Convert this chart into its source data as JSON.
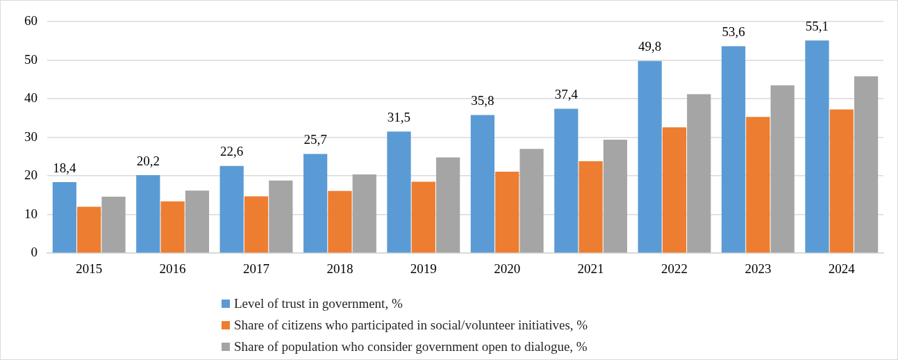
{
  "chart_data": {
    "type": "bar",
    "categories": [
      "2015",
      "2016",
      "2017",
      "2018",
      "2019",
      "2020",
      "2021",
      "2022",
      "2023",
      "2024"
    ],
    "series": [
      {
        "name": "Level of trust in government, %",
        "color": "#5b9bd5",
        "values": [
          18.4,
          20.2,
          22.6,
          25.7,
          31.5,
          35.8,
          37.4,
          49.8,
          53.6,
          55.1
        ],
        "value_labels": [
          "18,4",
          "20,2",
          "22,6",
          "25,7",
          "31,5",
          "35,8",
          "37,4",
          "49,8",
          "53,6",
          "55,1"
        ]
      },
      {
        "name": "Share of citizens who participated in social/volunteer initiatives, %",
        "color": "#ed7d31",
        "values": [
          12.0,
          13.4,
          14.7,
          16.1,
          18.5,
          21.1,
          23.8,
          32.6,
          35.3,
          37.2
        ]
      },
      {
        "name": "Share of population who consider government open to dialogue, %",
        "color": "#a5a5a5",
        "values": [
          14.6,
          16.2,
          18.8,
          20.4,
          24.8,
          27.0,
          29.4,
          41.2,
          43.5,
          45.8
        ]
      }
    ],
    "ylim": [
      0,
      60
    ],
    "yticks": [
      0,
      10,
      20,
      30,
      40,
      50,
      60
    ],
    "grid": "y",
    "legend": "bottom"
  }
}
